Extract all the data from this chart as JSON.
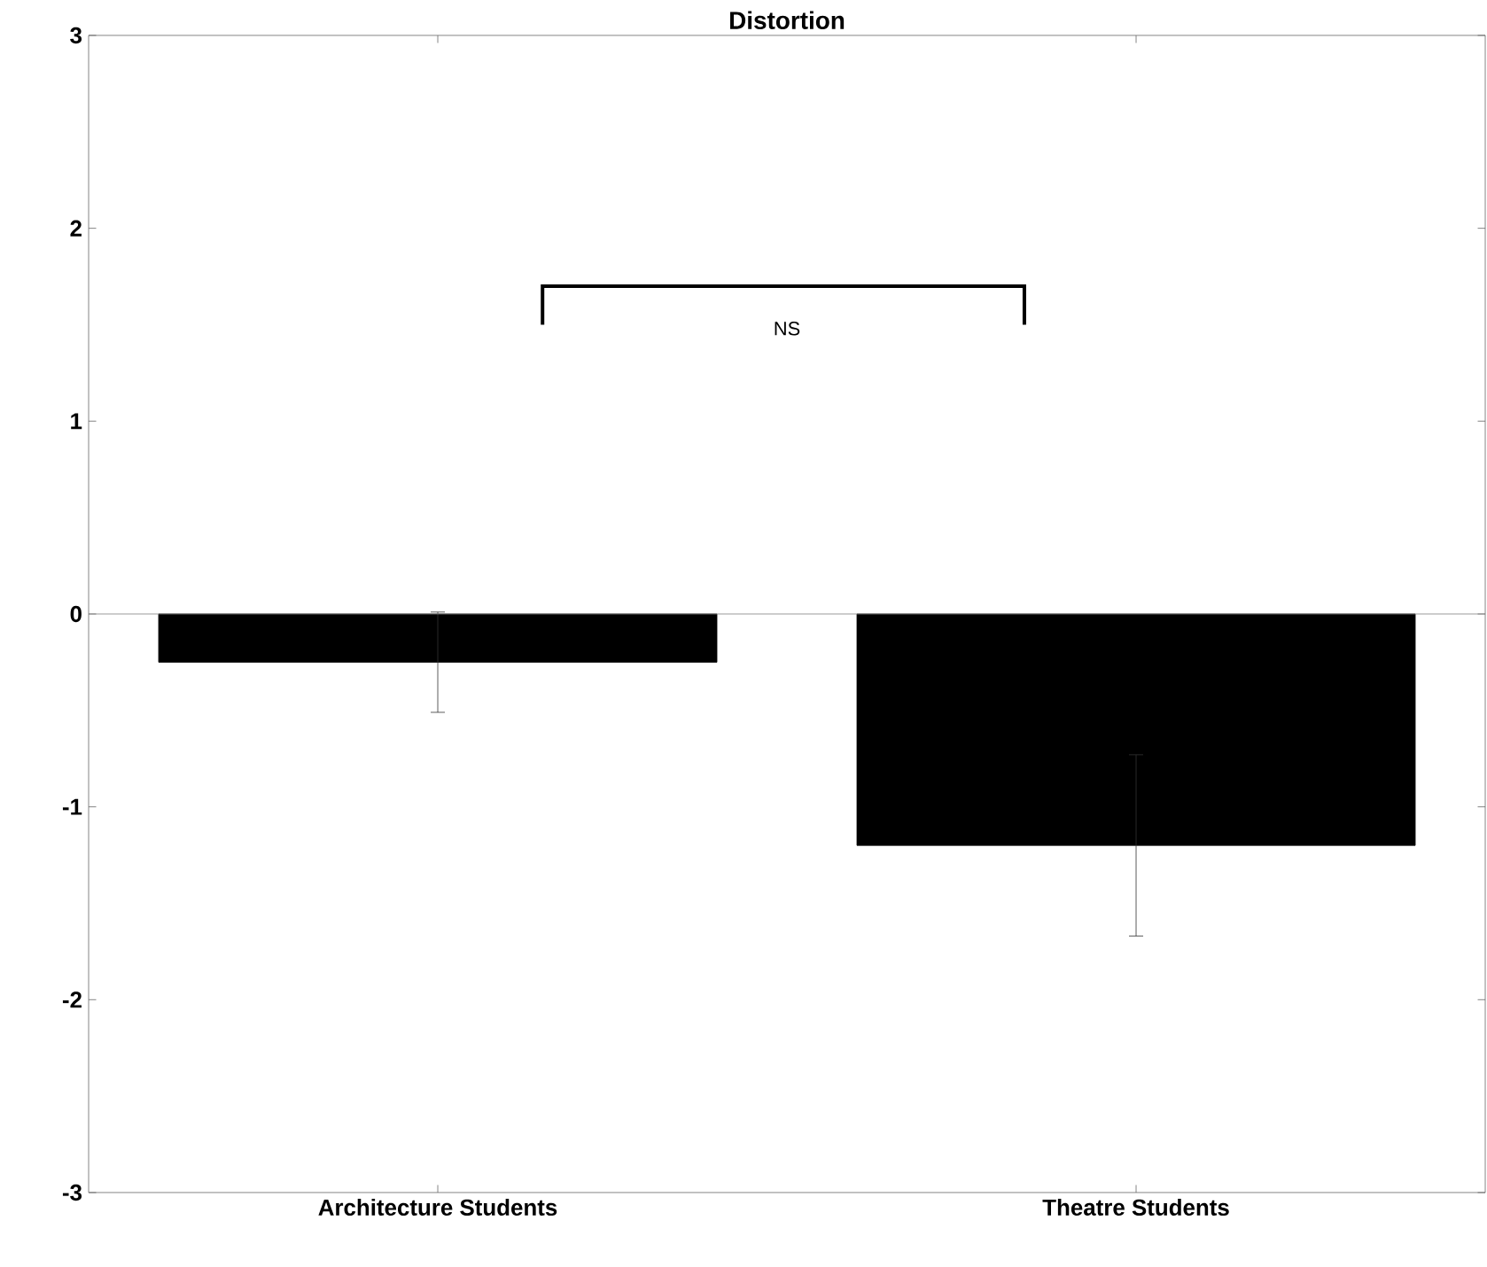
{
  "chart_data": {
    "type": "bar",
    "title": "Distortion",
    "categories": [
      "Architecture Students",
      "Theatre Students"
    ],
    "values": [
      -0.25,
      -1.2
    ],
    "errors": [
      0.26,
      0.47
    ],
    "color": "#000000",
    "ylim": [
      -3,
      3
    ],
    "yticks": [
      -3,
      -2,
      -1,
      0,
      1,
      2,
      3
    ],
    "ref_lines": [
      {
        "axis": "y",
        "value": 0,
        "color": "#808080"
      }
    ],
    "annotations": [
      "NS"
    ]
  }
}
